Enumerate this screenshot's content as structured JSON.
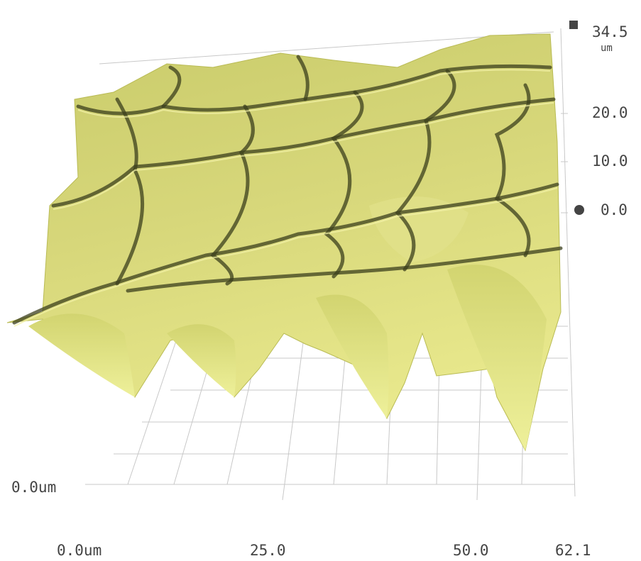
{
  "z_axis": {
    "max_label": "34.5",
    "unit": "um",
    "labels": [
      "20.0",
      "10.0",
      "0.0"
    ]
  },
  "y_axis": {
    "label": "0.0um"
  },
  "x_axis": {
    "labels": [
      "0.0um",
      "25.0",
      "50.0",
      "62.1"
    ]
  }
}
